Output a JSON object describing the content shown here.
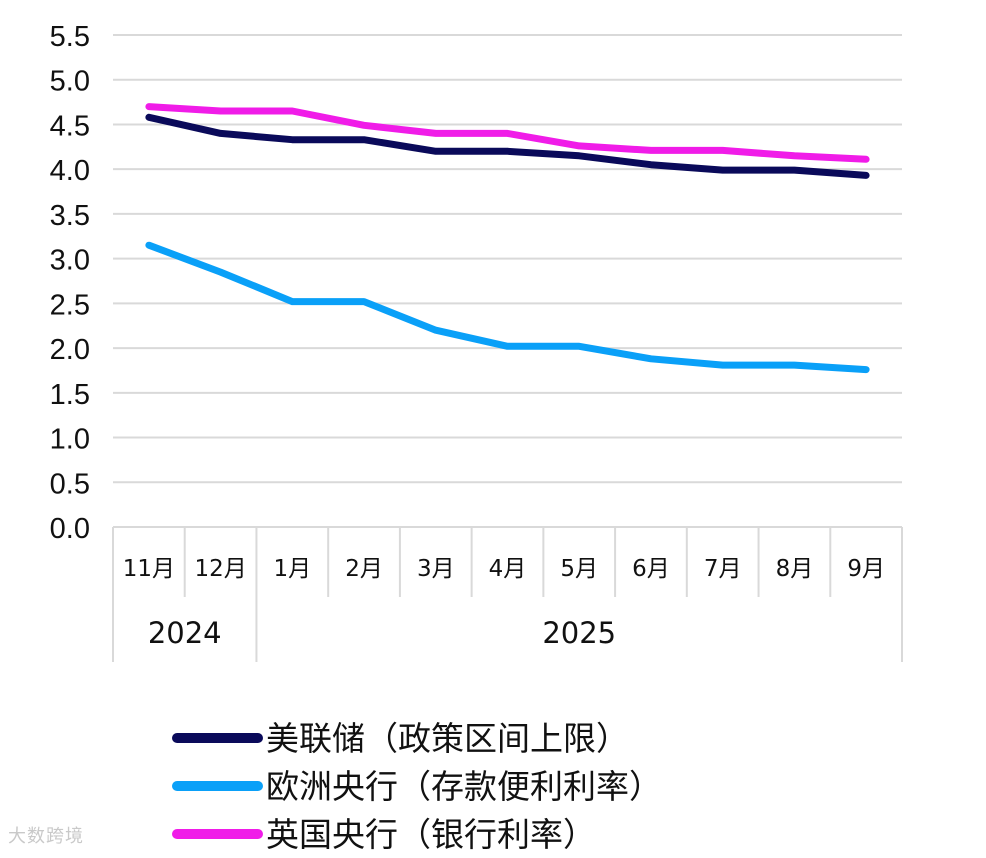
{
  "chart_data": {
    "type": "line",
    "categories": [
      "11月",
      "12月",
      "1月",
      "2月",
      "3月",
      "4月",
      "5月",
      "6月",
      "7月",
      "8月",
      "9月"
    ],
    "year_groups": [
      {
        "label": "2024",
        "span": [
          0,
          1
        ]
      },
      {
        "label": "2025",
        "span": [
          2,
          10
        ]
      }
    ],
    "ylim": [
      0.0,
      5.5
    ],
    "y_ticks": [
      "0.0",
      "0.5",
      "1.0",
      "1.5",
      "2.0",
      "2.5",
      "3.0",
      "3.5",
      "4.0",
      "4.5",
      "5.0",
      "5.5"
    ],
    "grid": true,
    "legend_position": "bottom",
    "series": [
      {
        "name": "美联储（政策区间上限）",
        "color": "#0a0a5a",
        "values": [
          4.58,
          4.4,
          4.33,
          4.33,
          4.2,
          4.2,
          4.15,
          4.05,
          3.99,
          3.99,
          3.93
        ]
      },
      {
        "name": "欧洲央行（存款便利利率）",
        "color": "#0aa0f8",
        "values": [
          3.15,
          2.85,
          2.52,
          2.52,
          2.2,
          2.02,
          2.02,
          1.88,
          1.81,
          1.81,
          1.76
        ]
      },
      {
        "name": "英国央行（银行利率）",
        "color": "#f01ce8",
        "values": [
          4.7,
          4.65,
          4.65,
          4.49,
          4.4,
          4.4,
          4.26,
          4.21,
          4.21,
          4.15,
          4.11
        ]
      }
    ]
  },
  "watermark": "大数跨境"
}
